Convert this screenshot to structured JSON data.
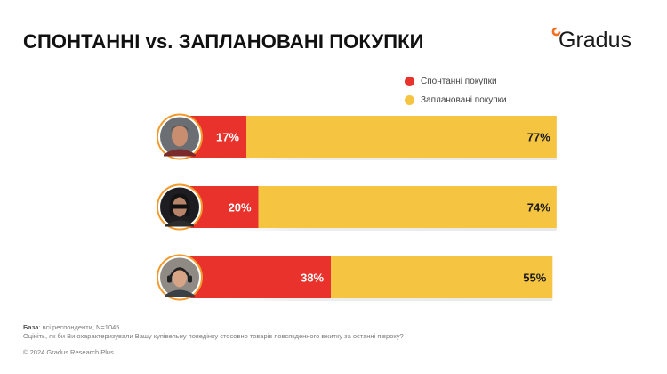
{
  "header": {
    "title": "СПОНТАННІ vs. ЗАПЛАНОВАНІ ПОКУПКИ",
    "logo_text": "Gradus",
    "logo_color": "#f36f21"
  },
  "chart_data": {
    "type": "bar",
    "orientation": "horizontal-stacked",
    "categories": [
      "respondent-man",
      "respondent-woman",
      "respondent-young-man"
    ],
    "series": [
      {
        "name": "Спонтанні покупки",
        "color": "#e8322b",
        "values": [
          17,
          20,
          38
        ],
        "labels": [
          "17%",
          "20%",
          "38%"
        ]
      },
      {
        "name": "Заплановані покупки",
        "color": "#f5c542",
        "values": [
          77,
          74,
          55
        ],
        "labels": [
          "77%",
          "74%",
          "55%"
        ]
      }
    ],
    "legend_position": "top-right",
    "grid": false
  },
  "footer": {
    "base_label": "База",
    "base_text": ": всі респонденти, N=1045",
    "question": "Оцініть, як би Ви охарактеризували Вашу купівельну поведінку стосовно товарів повсякденного вжитку за останні півроку?",
    "copyright": "© 2024 Gradus Research Plus"
  }
}
